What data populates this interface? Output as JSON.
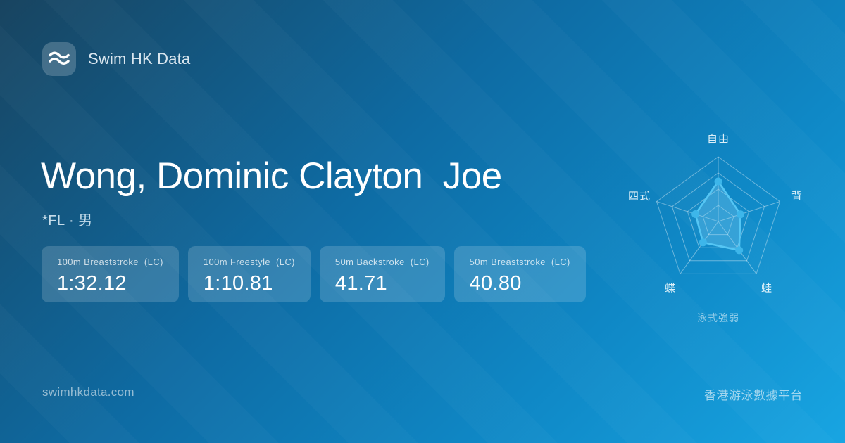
{
  "brand": {
    "name": "Swim HK Data",
    "logo_icon": "waves-icon"
  },
  "athlete": {
    "name": "Wong, Dominic Clayton  Joe",
    "meta": "*FL · 男"
  },
  "stats": [
    {
      "label": "100m Breaststroke  (LC)",
      "value": "1:32.12"
    },
    {
      "label": "100m Freestyle  (LC)",
      "value": "1:10.81"
    },
    {
      "label": "50m Backstroke  (LC)",
      "value": "41.71"
    },
    {
      "label": "50m Breaststroke  (LC)",
      "value": "40.80"
    }
  ],
  "chart_data": {
    "type": "radar",
    "title": "泳式強弱",
    "categories": [
      "自由",
      "背",
      "蛙",
      "蝶",
      "四式"
    ],
    "values": [
      0.62,
      0.36,
      0.55,
      0.4,
      0.37
    ],
    "max": 1,
    "ring_levels": [
      0.25,
      0.5,
      0.75,
      1
    ],
    "legend": "none",
    "colors": {
      "grid": "rgba(255,255,255,0.38)",
      "stroke": "#55c6f4",
      "fill": "rgba(140,215,250,0.28)",
      "dot": "#3db6ea"
    }
  },
  "footer": {
    "left": "swimhkdata.com",
    "right": "香港游泳數據平台"
  },
  "colors": {
    "bg_top_left": "#184460",
    "bg_bottom_right": "#18a5e2",
    "card_bg": "rgba(255,255,255,0.16)",
    "text_primary": "#ffffff"
  }
}
